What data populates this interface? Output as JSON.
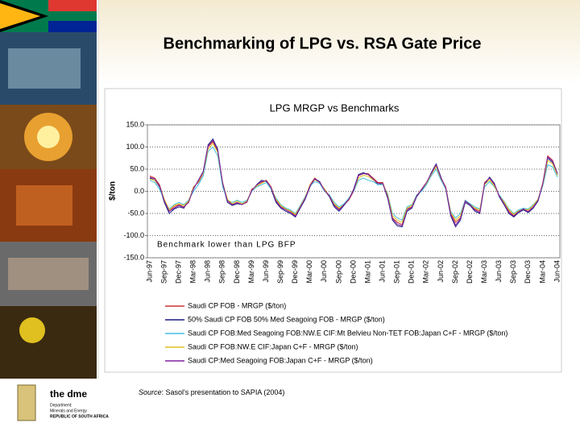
{
  "slide": {
    "title": "Benchmarking of LPG vs. RSA Gate Price",
    "source_label": "Source",
    "source": ": Sasol's presentation to SAPIA (2004)",
    "logo": {
      "name": "the dme",
      "line1": "Department:",
      "line2": "Minerals and Energy",
      "line3": "REPUBLIC OF SOUTH AFRICA"
    }
  },
  "chart_data": {
    "type": "line",
    "title": "LPG MRGP vs Benchmarks",
    "y_label": "$/ton",
    "annotation": "Benchmark lower than LPG BFP",
    "categories": [
      "Jun-97",
      null,
      null,
      "Sep-97",
      null,
      null,
      "Dec-97",
      null,
      null,
      "Mar-98",
      null,
      null,
      "Jun-98",
      null,
      null,
      "Sep-98",
      null,
      null,
      "Dec-98",
      null,
      null,
      "Mar-99",
      null,
      null,
      "Jun-99",
      null,
      null,
      "Sep-99",
      null,
      null,
      "Dec-99",
      null,
      null,
      "Mar-00",
      null,
      null,
      "Jun-00",
      null,
      null,
      "Sep-00",
      null,
      null,
      "Dec-00",
      null,
      null,
      "Mar-01",
      null,
      null,
      "Jun-01",
      null,
      null,
      "Sep-01",
      null,
      null,
      "Dec-01",
      null,
      null,
      "Mar-02",
      null,
      null,
      "Jun-02",
      null,
      null,
      "Sep-02",
      null,
      null,
      "Dec-02",
      null,
      null,
      "Mar-03",
      null,
      null,
      "Jun-03",
      null,
      null,
      "Sep-03",
      null,
      null,
      "Dec-03",
      null,
      null,
      "Mar-04",
      null,
      null,
      "Jun-04"
    ],
    "series": [
      {
        "name": "Saudi CP FOB - MRGP ($/ton)",
        "color": "#cc3333",
        "values": [
          35,
          30,
          15,
          -20,
          -45,
          -35,
          -30,
          -35,
          -25,
          10,
          20,
          40,
          100,
          112,
          90,
          20,
          -20,
          -30,
          -25,
          -30,
          -25,
          5,
          10,
          20,
          25,
          10,
          -20,
          -35,
          -40,
          -45,
          -55,
          -35,
          -15,
          15,
          30,
          20,
          5,
          -10,
          -30,
          -40,
          -30,
          -20,
          0,
          35,
          40,
          40,
          30,
          20,
          20,
          -10,
          -60,
          -70,
          -75,
          -40,
          -35,
          -10,
          5,
          20,
          40,
          60,
          30,
          10,
          -50,
          -70,
          -60,
          -20,
          -30,
          -40,
          -45,
          20,
          30,
          15,
          -10,
          -25,
          -45,
          -55,
          -45,
          -40,
          -45,
          -35,
          -20,
          20,
          80,
          70,
          40
        ]
      },
      {
        "name": "50% Saudi CP FOB 50% Med Seagoing FOB - MRGP ($/ton)",
        "color": "#1a1a80",
        "values": [
          30,
          25,
          10,
          -25,
          -50,
          -40,
          -35,
          -38,
          -20,
          5,
          25,
          45,
          105,
          118,
          95,
          15,
          -25,
          -32,
          -28,
          -30,
          -22,
          0,
          15,
          25,
          22,
          5,
          -25,
          -38,
          -45,
          -50,
          -58,
          -38,
          -18,
          10,
          28,
          22,
          2,
          -12,
          -35,
          -45,
          -32,
          -18,
          5,
          38,
          42,
          38,
          28,
          15,
          18,
          -15,
          -65,
          -78,
          -80,
          -45,
          -38,
          -12,
          2,
          18,
          42,
          62,
          32,
          5,
          -55,
          -80,
          -65,
          -25,
          -32,
          -45,
          -50,
          15,
          32,
          18,
          -12,
          -30,
          -50,
          -58,
          -48,
          -42,
          -48,
          -38,
          -22,
          15,
          75,
          65,
          38
        ]
      },
      {
        "name": "Saudi CP FOB:Med Seagoing FOB:NW.E CIF:Mt Belvieu Non-TET FOB:Japan C+F - MRGP ($/ton)",
        "color": "#40c0e0",
        "values": [
          25,
          20,
          5,
          -20,
          -40,
          -30,
          -25,
          -30,
          -20,
          0,
          15,
          35,
          90,
          100,
          80,
          10,
          -20,
          -25,
          -20,
          -25,
          -20,
          0,
          10,
          15,
          20,
          5,
          -15,
          -30,
          -38,
          -42,
          -50,
          -32,
          -12,
          12,
          22,
          18,
          0,
          -8,
          -25,
          -35,
          -28,
          -15,
          0,
          25,
          30,
          25,
          22,
          15,
          15,
          -5,
          -50,
          -60,
          -65,
          -35,
          -30,
          -8,
          0,
          15,
          35,
          50,
          25,
          5,
          -45,
          -60,
          -50,
          -20,
          -28,
          -35,
          -40,
          10,
          22,
          10,
          -8,
          -22,
          -40,
          -50,
          -42,
          -38,
          -40,
          -30,
          -18,
          12,
          60,
          55,
          32
        ]
      },
      {
        "name": "Saudi CP FOB:NW.E CIF:Japan C+F - MRGP ($/ton)",
        "color": "#e0c020",
        "values": [
          28,
          25,
          12,
          -18,
          -42,
          -32,
          -28,
          -32,
          -22,
          8,
          22,
          42,
          95,
          108,
          88,
          18,
          -18,
          -28,
          -22,
          -28,
          -22,
          2,
          12,
          18,
          24,
          8,
          -18,
          -32,
          -40,
          -44,
          -52,
          -34,
          -14,
          14,
          26,
          20,
          4,
          -10,
          -28,
          -38,
          -30,
          -18,
          2,
          30,
          36,
          34,
          26,
          18,
          18,
          -8,
          -55,
          -65,
          -70,
          -38,
          -32,
          -10,
          4,
          18,
          38,
          56,
          28,
          8,
          -48,
          -65,
          -55,
          -22,
          -30,
          -38,
          -42,
          15,
          26,
          12,
          -10,
          -24,
          -42,
          -52,
          -44,
          -40,
          -42,
          -32,
          -18,
          16,
          70,
          62,
          36
        ]
      },
      {
        "name": "Saudi CP:Med Seagoing FOB:Japan C+F - MRGP ($/ton)",
        "color": "#8020a0",
        "values": [
          32,
          28,
          12,
          -22,
          -45,
          -38,
          -32,
          -36,
          -24,
          6,
          24,
          44,
          102,
          115,
          92,
          18,
          -22,
          -30,
          -26,
          -30,
          -24,
          2,
          14,
          22,
          24,
          8,
          -22,
          -36,
          -42,
          -48,
          -56,
          -36,
          -16,
          12,
          28,
          20,
          2,
          -10,
          -32,
          -42,
          -30,
          -18,
          2,
          36,
          40,
          38,
          28,
          18,
          18,
          -12,
          -62,
          -74,
          -78,
          -42,
          -36,
          -10,
          4,
          20,
          40,
          60,
          30,
          8,
          -52,
          -76,
          -62,
          -22,
          -30,
          -42,
          -48,
          18,
          30,
          16,
          -10,
          -28,
          -48,
          -56,
          -46,
          -40,
          -46,
          -36,
          -20,
          18,
          78,
          68,
          40
        ]
      }
    ],
    "ylim": [
      -150,
      150
    ],
    "yticks": [
      {
        "value": 150,
        "label": "150.0"
      },
      {
        "value": 100,
        "label": "100.0"
      },
      {
        "value": 50,
        "label": "50.0"
      },
      {
        "value": 0,
        "label": "0.0"
      },
      {
        "value": -50,
        "label": "-50.0"
      },
      {
        "value": -100,
        "label": "-100.0"
      },
      {
        "value": -150,
        "label": "-150.0"
      }
    ],
    "grid": true
  }
}
